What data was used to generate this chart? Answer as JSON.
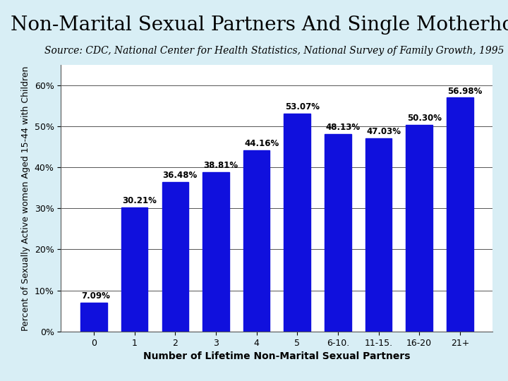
{
  "title": "Non-Marital Sexual Partners And Single Motherhood",
  "subtitle": "Source: CDC, National Center for Health Statistics, National Survey of Family Growth, 1995",
  "categories": [
    "0",
    "1",
    "2",
    "3",
    "4",
    "5",
    "6-10.",
    "11-15.",
    "16-20",
    "21+"
  ],
  "values": [
    7.09,
    30.21,
    36.48,
    38.81,
    44.16,
    53.07,
    48.13,
    47.03,
    50.3,
    56.98
  ],
  "labels": [
    "7.09%",
    "30.21%",
    "36.48%",
    "38.81%",
    "44.16%",
    "53.07%",
    "48.13%",
    "47.03%",
    "50.30%",
    "56.98%"
  ],
  "bar_color": "#1010DD",
  "plot_bg_color": "#FFFFFF",
  "outer_bg_color": "#D8EEF5",
  "ylabel": "Percent of Sexually Active women Aged 15-44 with Children",
  "xlabel": "Number of Lifetime Non-Marital Sexual Partners",
  "ylim": [
    0,
    65
  ],
  "yticks": [
    0,
    10,
    20,
    30,
    40,
    50,
    60
  ],
  "ytick_labels": [
    "0%",
    "10%",
    "20%",
    "30%",
    "40%",
    "50%",
    "60%"
  ],
  "title_fontsize": 20,
  "subtitle_fontsize": 10,
  "ylabel_fontsize": 9,
  "xlabel_fontsize": 10,
  "tick_fontsize": 9,
  "bar_label_fontsize": 8.5
}
